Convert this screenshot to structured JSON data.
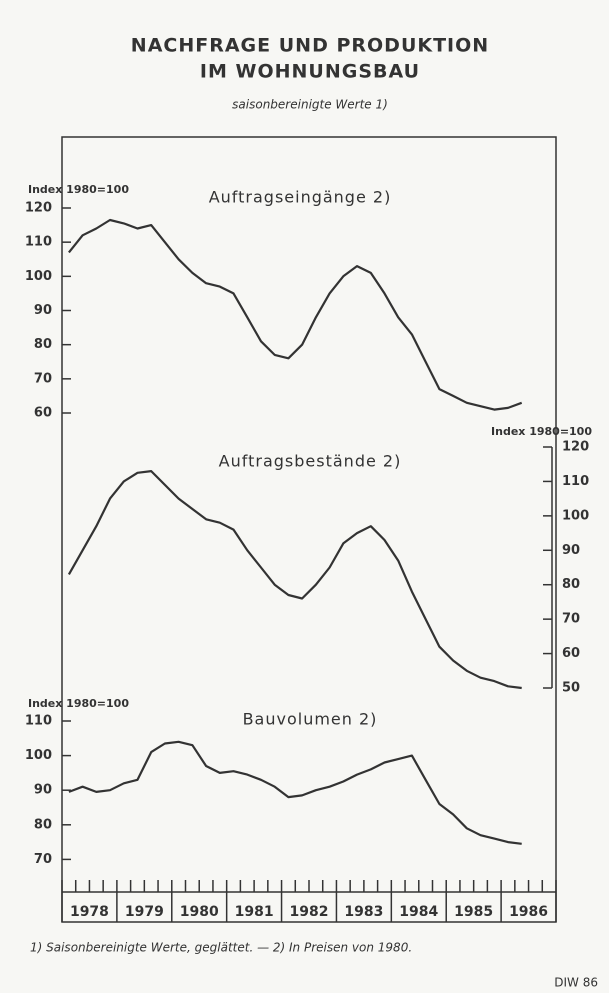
{
  "header": {
    "title_line1": "NACHFRAGE UND PRODUKTION",
    "title_line2": "IM WOHNUNGSBAU",
    "subtitle": "saisonbereinigte Werte 1)"
  },
  "footnote": "1) Saisonbereinigte Werte, geglättet. — 2) In Preisen von 1980.",
  "source": "DIW 86",
  "chart_data": [
    {
      "type": "line",
      "title": "Auftragseingänge 2)",
      "y_label": "Index 1980=100",
      "color": "#333333",
      "axis_side": "left",
      "x": [
        1978.125,
        1978.375,
        1978.625,
        1978.875,
        1979.125,
        1979.375,
        1979.625,
        1979.875,
        1980.125,
        1980.375,
        1980.625,
        1980.875,
        1981.125,
        1981.375,
        1981.625,
        1981.875,
        1982.125,
        1982.375,
        1982.625,
        1982.875,
        1983.125,
        1983.375,
        1983.625,
        1983.875,
        1984.125,
        1984.375,
        1984.625,
        1984.875,
        1985.125,
        1985.375,
        1985.625,
        1985.875,
        1986.125,
        1986.375
      ],
      "values": [
        107,
        112,
        114,
        116.5,
        115.5,
        114,
        115,
        110,
        105,
        101,
        98,
        97,
        95,
        88,
        81,
        77,
        76,
        80,
        88,
        95,
        100,
        103,
        101,
        95,
        88,
        83,
        75,
        67,
        65,
        63,
        62,
        61,
        61.5,
        63
      ],
      "xlim": [
        1978,
        1987
      ],
      "ylim": [
        60,
        120
      ],
      "yticks": [
        120,
        110,
        100,
        90,
        80,
        70,
        60
      ]
    },
    {
      "type": "line",
      "title": "Auftragsbestände 2)",
      "y_label": "Index 1980=100",
      "color": "#333333",
      "axis_side": "right",
      "x": [
        1978.125,
        1978.375,
        1978.625,
        1978.875,
        1979.125,
        1979.375,
        1979.625,
        1979.875,
        1980.125,
        1980.375,
        1980.625,
        1980.875,
        1981.125,
        1981.375,
        1981.625,
        1981.875,
        1982.125,
        1982.375,
        1982.625,
        1982.875,
        1983.125,
        1983.375,
        1983.625,
        1983.875,
        1984.125,
        1984.375,
        1984.625,
        1984.875,
        1985.125,
        1985.375,
        1985.625,
        1985.875,
        1986.125,
        1986.375
      ],
      "values": [
        83,
        90,
        97,
        105,
        110,
        112.5,
        113,
        109,
        105,
        102,
        99,
        98,
        96,
        90,
        85,
        80,
        77,
        76,
        80,
        85,
        92,
        95,
        97,
        93,
        87,
        78,
        70,
        62,
        58,
        55,
        53,
        52,
        50.5,
        50
      ],
      "xlim": [
        1978,
        1987
      ],
      "ylim": [
        50,
        120
      ],
      "yticks": [
        120,
        110,
        100,
        90,
        80,
        70,
        60,
        50
      ]
    },
    {
      "type": "line",
      "title": "Bauvolumen 2)",
      "y_label": "Index 1980=100",
      "color": "#333333",
      "axis_side": "left",
      "x": [
        1978.125,
        1978.375,
        1978.625,
        1978.875,
        1979.125,
        1979.375,
        1979.625,
        1979.875,
        1980.125,
        1980.375,
        1980.625,
        1980.875,
        1981.125,
        1981.375,
        1981.625,
        1981.875,
        1982.125,
        1982.375,
        1982.625,
        1982.875,
        1983.125,
        1983.375,
        1983.625,
        1983.875,
        1984.125,
        1984.375,
        1984.625,
        1984.875,
        1985.125,
        1985.375,
        1985.625,
        1985.875,
        1986.125,
        1986.375
      ],
      "values": [
        89.5,
        91,
        89.5,
        90,
        92,
        93,
        101,
        103.5,
        104,
        103,
        97,
        95,
        95.5,
        94.5,
        93,
        91,
        88,
        88.5,
        90,
        91,
        92.5,
        94.5,
        96,
        98,
        99,
        100,
        93,
        86,
        83,
        79,
        77,
        76,
        75,
        74.5
      ],
      "xlim": [
        1978,
        1987
      ],
      "ylim": [
        60,
        110
      ],
      "yticks": [
        110,
        100,
        90,
        80,
        70
      ],
      "categories": [
        "1978",
        "1979",
        "1980",
        "1981",
        "1982",
        "1983",
        "1984",
        "1985",
        "1986"
      ],
      "xticks": [
        1978,
        1978.25,
        1978.5,
        1978.75,
        1979,
        1979.25,
        1979.5,
        1979.75,
        1980,
        1980.25,
        1980.5,
        1980.75,
        1981,
        1981.25,
        1981.5,
        1981.75,
        1982,
        1982.25,
        1982.5,
        1982.75,
        1983,
        1983.25,
        1983.5,
        1983.75,
        1984,
        1984.25,
        1984.5,
        1984.75,
        1985,
        1985.25,
        1985.5,
        1985.75,
        1986,
        1986.25,
        1986.5,
        1986.75,
        1987
      ]
    }
  ]
}
